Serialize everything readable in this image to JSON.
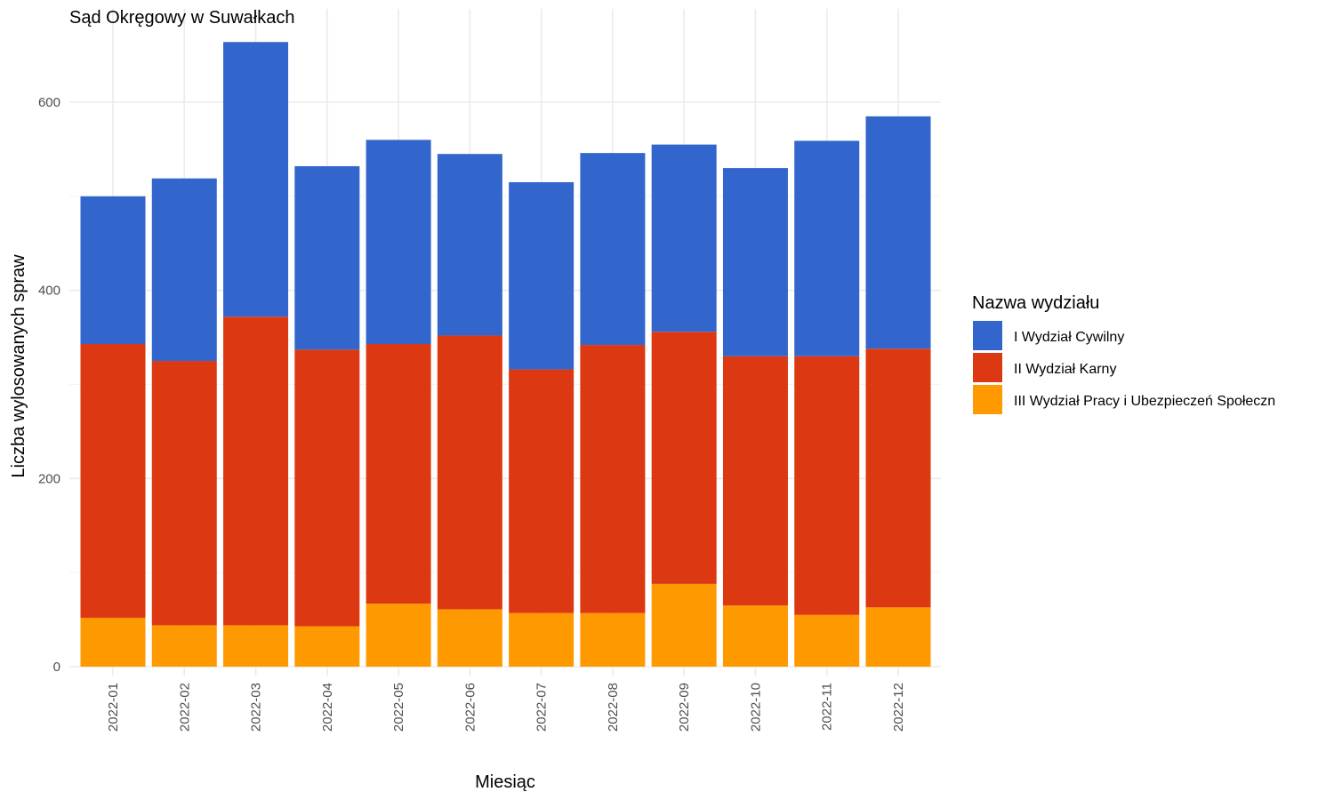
{
  "chart_data": {
    "type": "bar",
    "stacked": true,
    "title": "Sąd Okręgowy w Suwałkach",
    "xlabel": "Miesiąc",
    "ylabel": "Liczba wylosowanych spraw",
    "ylim": [
      0,
      660
    ],
    "y_ticks": [
      0,
      200,
      400,
      600
    ],
    "y_tick_labels": [
      "0",
      "200",
      "400",
      "600"
    ],
    "grid": true,
    "categories": [
      "2022-01",
      "2022-02",
      "2022-03",
      "2022-04",
      "2022-05",
      "2022-06",
      "2022-07",
      "2022-08",
      "2022-09",
      "2022-10",
      "2022-11",
      "2022-12"
    ],
    "legend": {
      "title": "Nazwa wydziału",
      "position": "right"
    },
    "series": [
      {
        "name": "III Wydział Pracy i Ubezpieczeń Społeczn",
        "color": "#ff9900",
        "values": [
          52,
          44,
          44,
          43,
          67,
          61,
          57,
          57,
          88,
          65,
          55,
          63
        ]
      },
      {
        "name": "II Wydział Karny",
        "color": "#dc3912",
        "values": [
          291,
          281,
          328,
          294,
          276,
          291,
          259,
          285,
          268,
          265,
          275,
          275
        ]
      },
      {
        "name": "I Wydział Cywilny",
        "color": "#3366cc",
        "values": [
          157,
          194,
          292,
          195,
          217,
          193,
          199,
          204,
          199,
          200,
          229,
          247
        ]
      }
    ],
    "legend_order": [
      2,
      1,
      0
    ]
  }
}
